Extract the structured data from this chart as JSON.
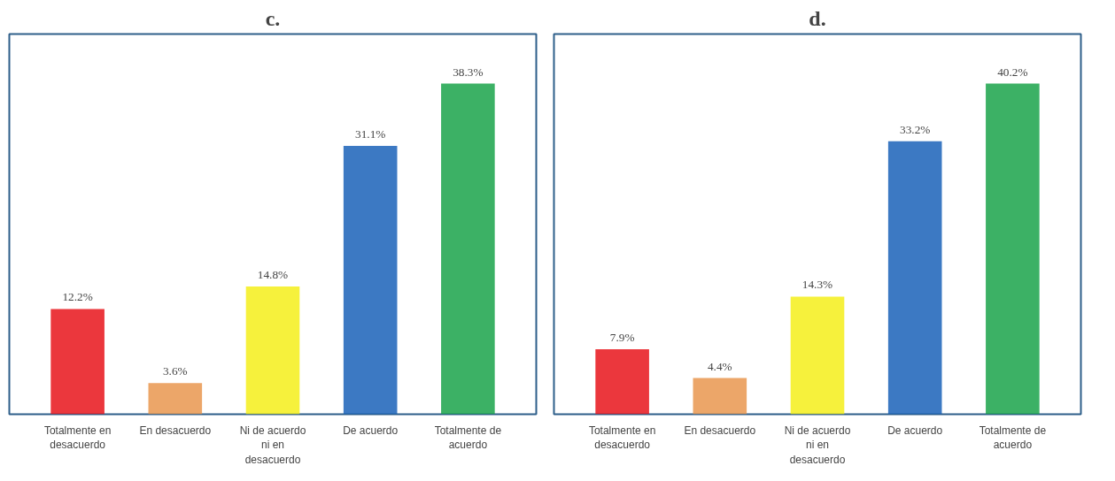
{
  "chart_data": [
    {
      "type": "bar",
      "title": "c.",
      "categories": [
        "Totalmente en desacuerdo",
        "En desacuerdo",
        "Ni de acuerdo ni en desacuerdo",
        "De acuerdo",
        "Totalmente de acuerdo"
      ],
      "values": [
        12.2,
        3.6,
        14.8,
        31.1,
        38.3
      ],
      "value_labels": [
        "12.2%",
        "3.6%",
        "14.8%",
        "31.1%",
        "38.3%"
      ],
      "colors": [
        "#e8141b",
        "#e9964f",
        "#f4ef1a",
        "#1a62b8",
        "#1aa34a"
      ]
    },
    {
      "type": "bar",
      "title": "d.",
      "categories": [
        "Totalmente en desacuerdo",
        "En desacuerdo",
        "Ni de acuerdo ni en desacuerdo",
        "De acuerdo",
        "Totalmente de acuerdo"
      ],
      "values": [
        7.9,
        4.4,
        14.3,
        33.2,
        40.2
      ],
      "value_labels": [
        "7.9%",
        "4.4%",
        "14.3%",
        "33.2%",
        "40.2%"
      ],
      "colors": [
        "#e8141b",
        "#e9964f",
        "#f4ef1a",
        "#1a62b8",
        "#1aa34a"
      ]
    }
  ]
}
